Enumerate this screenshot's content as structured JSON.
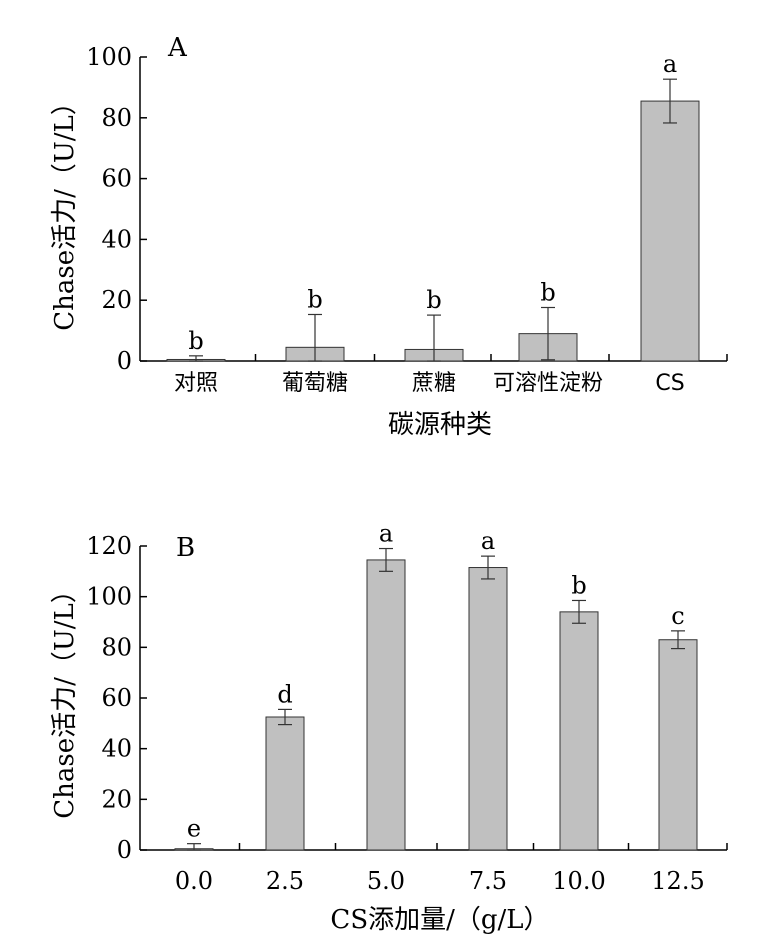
{
  "chart_data": [
    {
      "type": "bar",
      "panel_label": "A",
      "xlabel": "碳源种类",
      "ylabel": "Chase活力/（U/L）",
      "ylim": [
        0,
        100
      ],
      "yticks": [
        0,
        20,
        40,
        60,
        80,
        100
      ],
      "categories": [
        "对照",
        "葡萄糖",
        "蔗糖",
        "可溶性淀粉",
        "CS"
      ],
      "values": [
        0.5,
        4.5,
        3.8,
        9,
        85.5
      ],
      "errors": [
        1.2,
        10.8,
        11.3,
        8.6,
        7.2
      ],
      "letters": [
        "b",
        "b",
        "b",
        "b",
        "a"
      ],
      "bar_color": "#c0c0c0"
    },
    {
      "type": "bar",
      "panel_label": "B",
      "xlabel": "CS添加量/（g/L）",
      "ylabel": "Chase活力/（U/L）",
      "ylim": [
        0,
        120
      ],
      "yticks": [
        0,
        20,
        40,
        60,
        80,
        100,
        120
      ],
      "categories": [
        "0.0",
        "2.5",
        "5.0",
        "7.5",
        "10.0",
        "12.5"
      ],
      "values": [
        0.5,
        52.5,
        114.5,
        111.5,
        94,
        83
      ],
      "errors": [
        2,
        3,
        4.5,
        4.5,
        4.5,
        3.5
      ],
      "letters": [
        "e",
        "d",
        "a",
        "a",
        "b",
        "c"
      ],
      "bar_color": "#c0c0c0"
    }
  ]
}
